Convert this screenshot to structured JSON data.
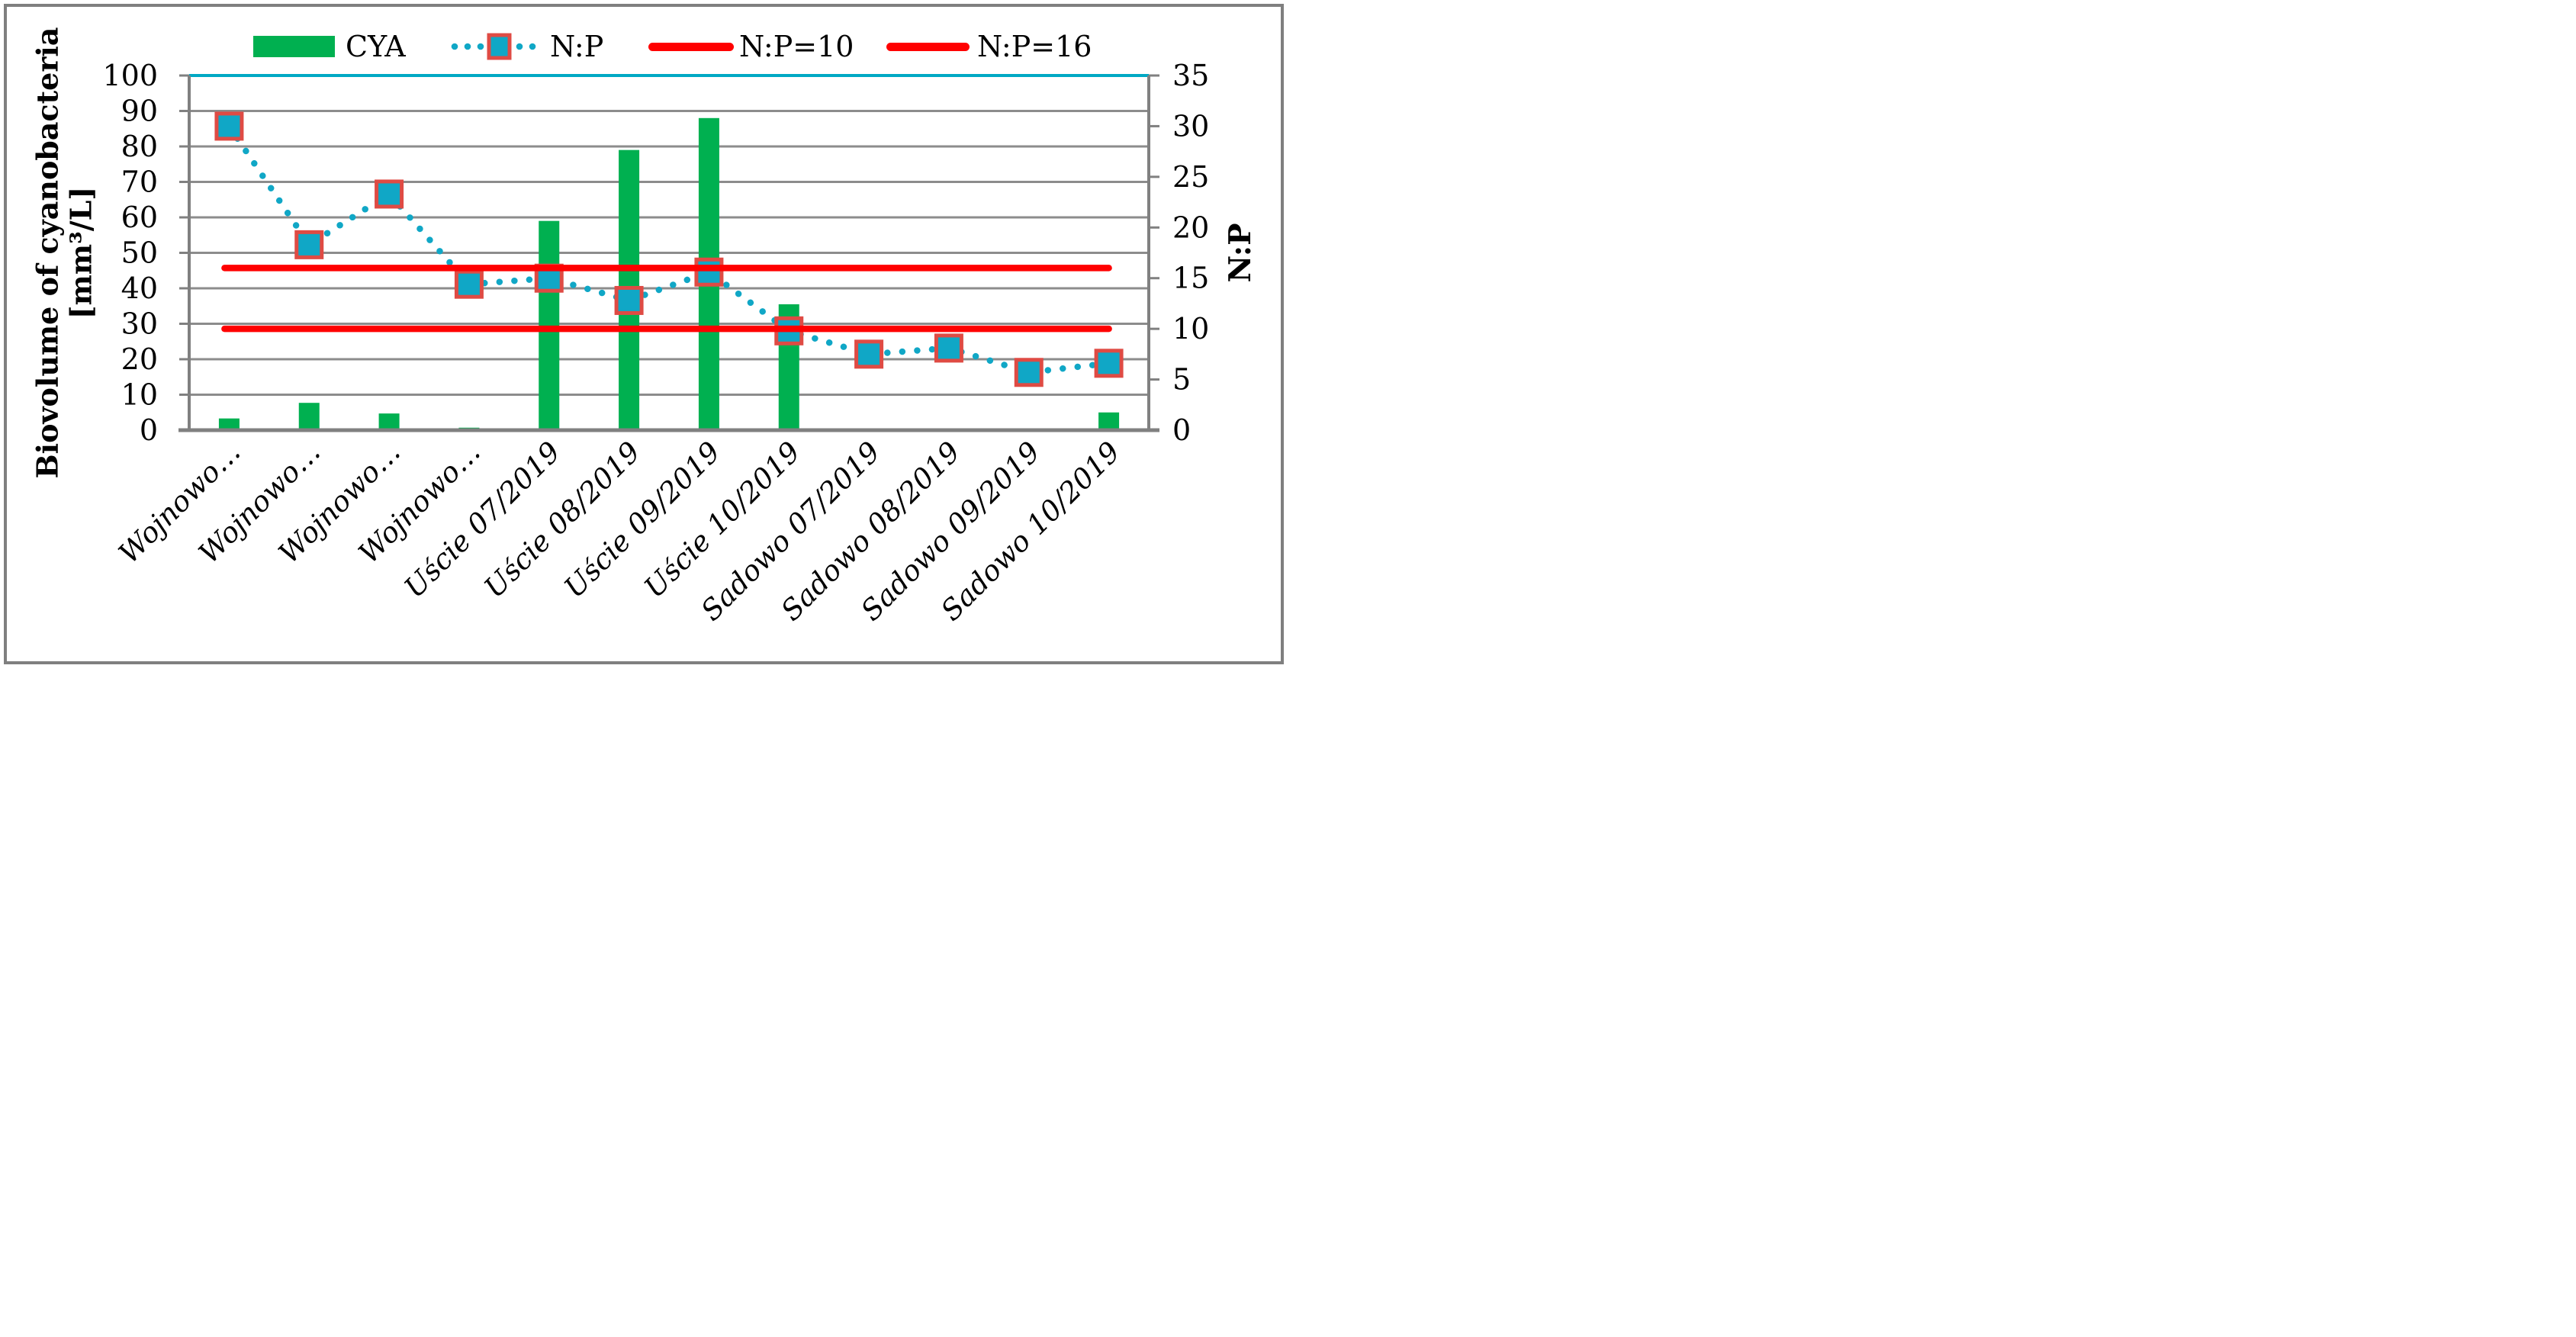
{
  "figure": {
    "background": "#FFFFFF",
    "border_color": "#7F7F7F"
  },
  "legend": {
    "position": "top",
    "items": [
      {
        "label": "CYA",
        "swatch": "green-bar-swatch"
      },
      {
        "label": "N:P",
        "swatch": "teal-dotted-line-with-square-marker"
      },
      {
        "label": "N:P=10",
        "swatch": "red-thick-line"
      },
      {
        "label": "N:P=16",
        "swatch": "red-thick-line"
      }
    ]
  },
  "chart_data": {
    "type": "combo",
    "title": "",
    "categories": [
      "Wojnowo…",
      "Wojnowo…",
      "Wojnowo…",
      "Wojnowo…",
      "Uście 07/2019",
      "Uście 08/2019",
      "Uście 09/2019",
      "Uście 10/2019",
      "Sadowo 07/2019",
      "Sadowo 08/2019",
      "Sadowo 09/2019",
      "Sadowo 10/2019"
    ],
    "series": [
      {
        "name": "CYA",
        "type": "bar",
        "axis": "left",
        "color": "#00B050",
        "values": [
          3.3,
          7.7,
          4.7,
          0.7,
          59,
          79,
          88,
          35.5,
          0,
          0,
          0,
          5
        ]
      },
      {
        "name": "N:P",
        "type": "line",
        "line_style": "dotted",
        "marker": "square",
        "axis": "right",
        "color": "#10A7C6",
        "marker_fill": "#10A7C6",
        "marker_border": "#DF4B44",
        "values": [
          30,
          18.3,
          23.3,
          14.4,
          15.0,
          12.8,
          15.6,
          9.8,
          7.5,
          8.1,
          5.7,
          6.6
        ]
      },
      {
        "name": "N:P=10",
        "type": "hline",
        "axis": "right",
        "color": "#FF0000",
        "value": 10
      },
      {
        "name": "N:P=16",
        "type": "hline",
        "axis": "right",
        "color": "#FF0000",
        "value": 16
      }
    ],
    "left_axis": {
      "title_line1": "Biovolume of cyanobacteria",
      "title_line2": "[mm³/L]",
      "min": 0,
      "max": 100,
      "step": 10,
      "ticks": [
        "100",
        "90",
        "80",
        "70",
        "60",
        "50",
        "40",
        "30",
        "20",
        "10",
        "0"
      ]
    },
    "right_axis": {
      "title": "N:P",
      "min": 0,
      "max": 35,
      "step": 5,
      "ticks": [
        "35",
        "30",
        "25",
        "20",
        "15",
        "10",
        "5",
        "0"
      ]
    },
    "grid": true,
    "gridline_color": "#8C8C8C",
    "axis_color": "#808080",
    "plot_top_border_color": "#00A9C4",
    "x_label_style": "italic, rotated 45°"
  }
}
